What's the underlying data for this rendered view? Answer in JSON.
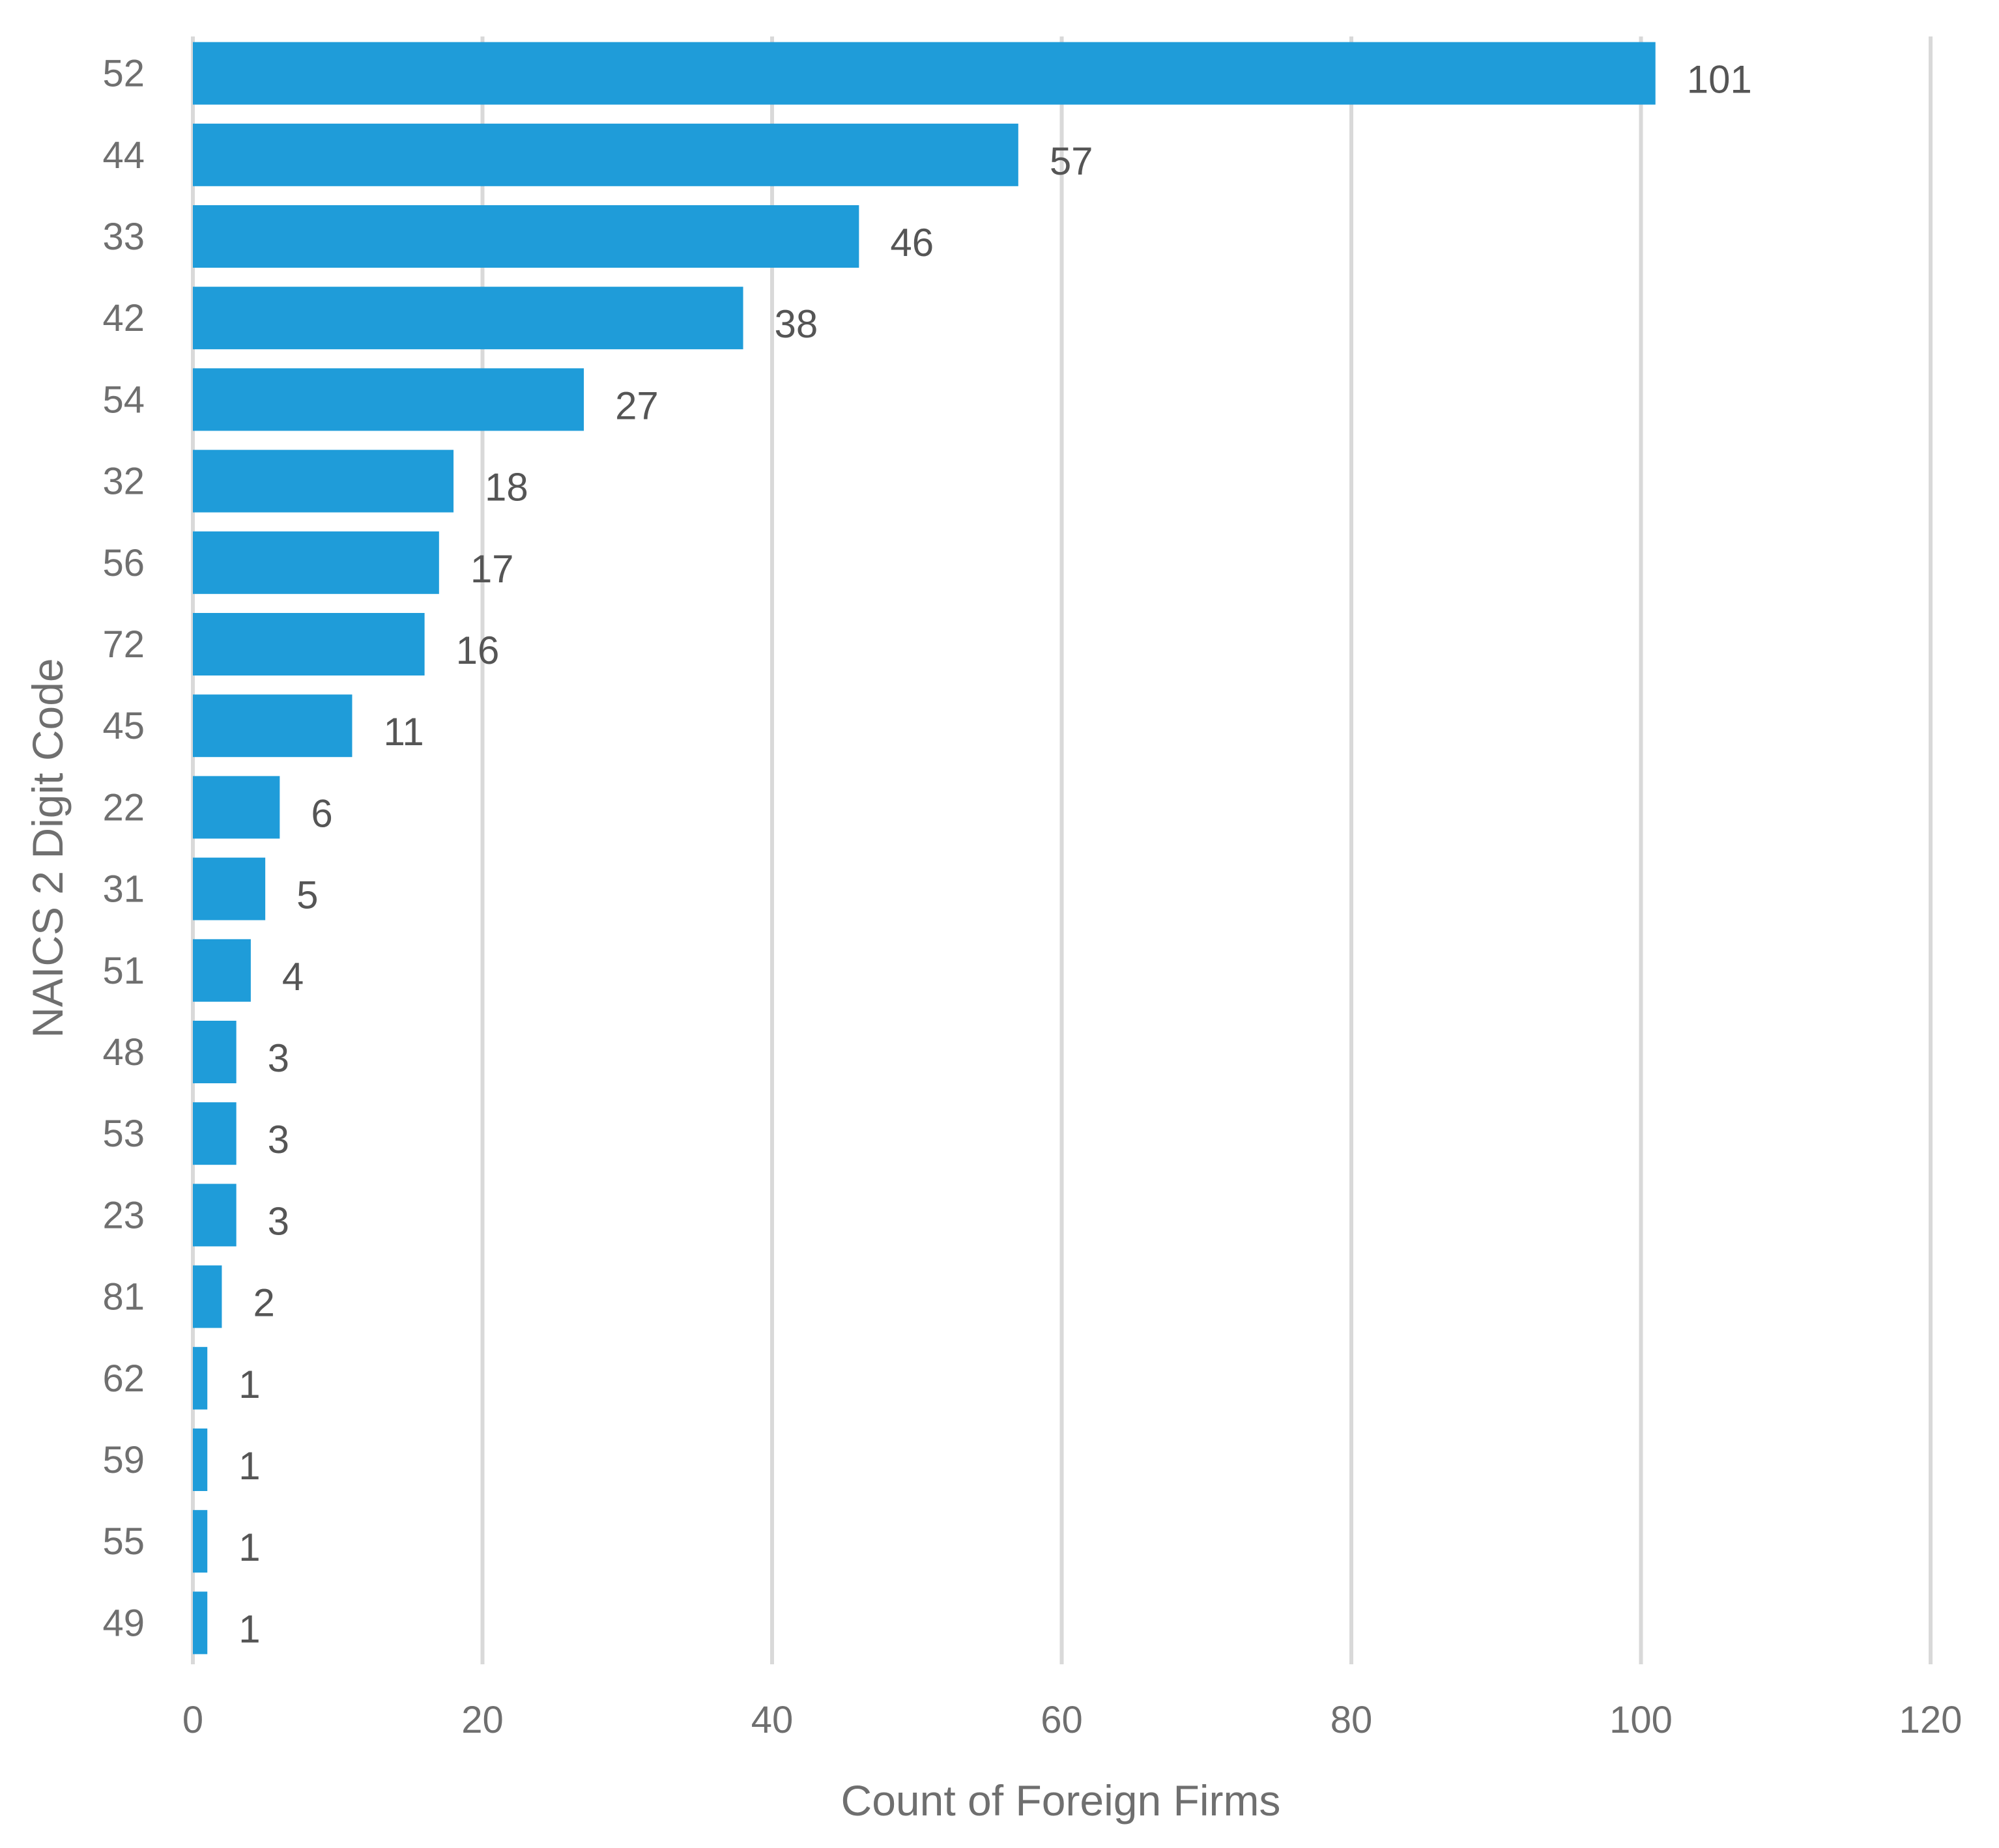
{
  "chart_data": {
    "type": "bar",
    "orientation": "horizontal",
    "title": "",
    "xlabel": "Count of Foreign Firms",
    "ylabel": "NAICS 2 Digit Code",
    "categories": [
      "52",
      "44",
      "33",
      "42",
      "54",
      "32",
      "56",
      "72",
      "45",
      "22",
      "31",
      "51",
      "48",
      "53",
      "23",
      "81",
      "62",
      "59",
      "55",
      "49"
    ],
    "values": [
      101,
      57,
      46,
      38,
      27,
      18,
      17,
      16,
      11,
      6,
      5,
      4,
      3,
      3,
      3,
      2,
      1,
      1,
      1,
      1
    ],
    "xlim": [
      0,
      120
    ],
    "xticks": [
      0,
      20,
      40,
      60,
      80,
      100,
      120
    ],
    "grid": "vertical",
    "data_labels": true,
    "legend": "none",
    "bar_color": "#1f9cd9",
    "grid_color": "#d9d9d9"
  }
}
